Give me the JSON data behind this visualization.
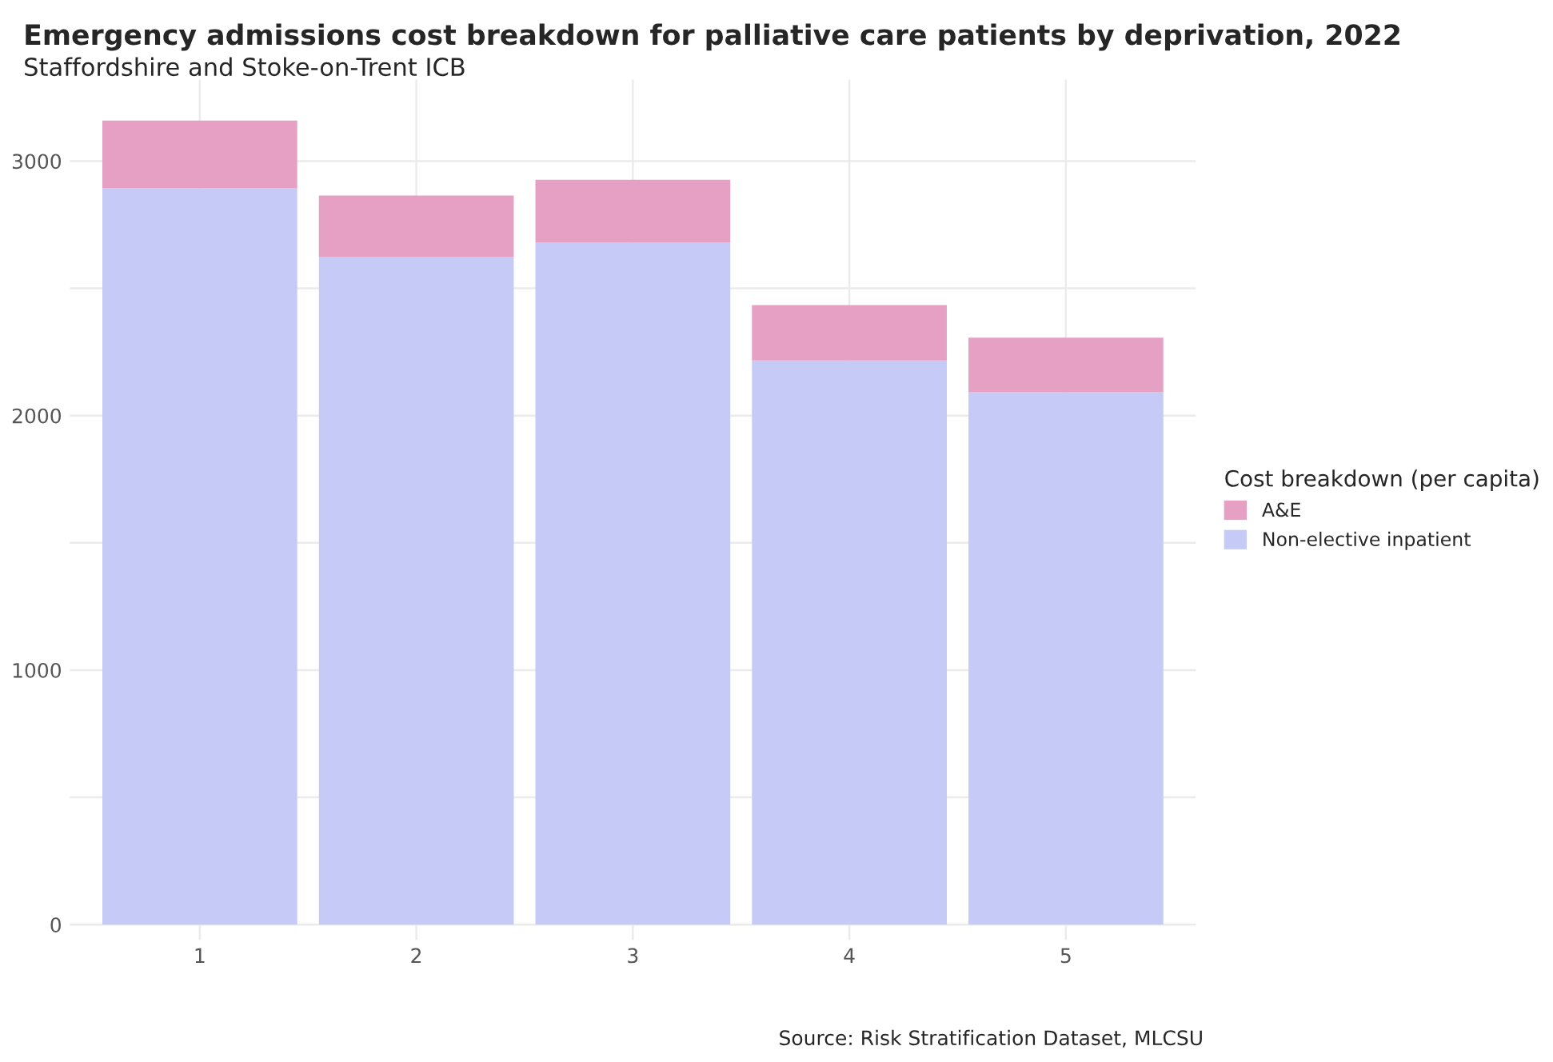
{
  "chart_data": {
    "type": "bar",
    "title": "Emergency admissions cost breakdown for palliative care patients by deprivation, 2022",
    "subtitle": "Staffordshire and Stoke-on-Trent ICB",
    "categories": [
      "1",
      "2",
      "3",
      "4",
      "5"
    ],
    "stacked": true,
    "series": [
      {
        "name": "Non-elective inpatient",
        "color": "#c5cbf6",
        "values": [
          2893,
          2624,
          2679,
          2217,
          2092
        ]
      },
      {
        "name": "A&E",
        "color": "#e6a0c4",
        "values": [
          266,
          241,
          248,
          217,
          214
        ]
      }
    ],
    "legend_title": "Cost breakdown (per capita)",
    "legend": "right",
    "ylim": [
      -60,
      3320
    ],
    "yticks": [
      0,
      {
        "value": 500,
        "label": null
      },
      1000,
      {
        "value": 1500,
        "label": null
      },
      2000,
      {
        "value": 2500,
        "label": null
      },
      3000
    ],
    "grid": true,
    "annotations": [
      "Source: Risk Stratification Dataset, MLCSU"
    ]
  }
}
